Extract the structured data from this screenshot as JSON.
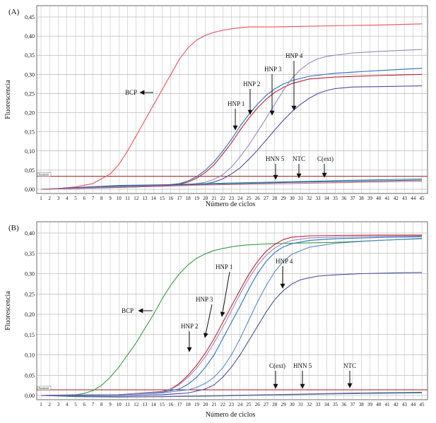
{
  "chart_data": [
    {
      "panel": "(A)",
      "type": "line",
      "xlabel": "Número de ciclos",
      "ylabel": "Fluorescencia",
      "xlim": [
        1,
        45
      ],
      "ylim": [
        0,
        0.45
      ],
      "x_ticks": [
        1,
        2,
        3,
        4,
        5,
        6,
        7,
        8,
        9,
        10,
        11,
        12,
        13,
        14,
        15,
        16,
        17,
        18,
        19,
        20,
        21,
        22,
        23,
        24,
        25,
        26,
        27,
        28,
        29,
        30,
        31,
        32,
        33,
        34,
        35,
        36,
        37,
        38,
        39,
        40,
        41,
        42,
        43,
        44,
        45
      ],
      "y_ticks": [
        "0,00",
        "0,05",
        "0,10",
        "0,15",
        "0,20",
        "0,25",
        "0,30",
        "0,35",
        "0,40",
        "0,45"
      ],
      "grid": true,
      "threshold": {
        "label": "Threshold",
        "value": 0.034,
        "color": "#a01818"
      },
      "series": [
        {
          "name": "BCP",
          "color": "#e8505a",
          "x": [
            1,
            3,
            5,
            7,
            9,
            10,
            11,
            12,
            13,
            14,
            15,
            16,
            17,
            18,
            19,
            20,
            21,
            22,
            23,
            24,
            25,
            26,
            28,
            30,
            35,
            40,
            45
          ],
          "values": [
            0.0,
            0.002,
            0.006,
            0.015,
            0.04,
            0.065,
            0.1,
            0.14,
            0.18,
            0.22,
            0.26,
            0.3,
            0.34,
            0.37,
            0.39,
            0.402,
            0.41,
            0.415,
            0.419,
            0.422,
            0.424,
            0.424,
            0.424,
            0.425,
            0.427,
            0.429,
            0.432
          ]
        },
        {
          "name": "HNP 1",
          "color": "#2a6fbf",
          "x": [
            1,
            5,
            10,
            15,
            17,
            18,
            19,
            20,
            21,
            22,
            23,
            24,
            25,
            26,
            27,
            28,
            29,
            30,
            32,
            35,
            40,
            45
          ],
          "values": [
            0.0,
            0.003,
            0.006,
            0.01,
            0.015,
            0.022,
            0.033,
            0.05,
            0.072,
            0.1,
            0.13,
            0.165,
            0.195,
            0.222,
            0.245,
            0.262,
            0.275,
            0.284,
            0.295,
            0.303,
            0.31,
            0.316
          ]
        },
        {
          "name": "HNP 2",
          "color": "#c02030",
          "x": [
            1,
            5,
            10,
            15,
            17,
            18,
            19,
            20,
            21,
            22,
            23,
            24,
            25,
            26,
            27,
            28,
            29,
            30,
            32,
            35,
            40,
            45
          ],
          "values": [
            0.0,
            0.003,
            0.006,
            0.009,
            0.013,
            0.019,
            0.029,
            0.044,
            0.064,
            0.092,
            0.121,
            0.155,
            0.185,
            0.212,
            0.235,
            0.253,
            0.266,
            0.276,
            0.288,
            0.293,
            0.297,
            0.3
          ]
        },
        {
          "name": "HNP 3",
          "color": "#9a86c0",
          "x": [
            1,
            5,
            10,
            15,
            18,
            20,
            21,
            22,
            23,
            24,
            25,
            26,
            27,
            28,
            29,
            30,
            31,
            32,
            33,
            34,
            35,
            37,
            40,
            45
          ],
          "values": [
            0.0,
            0.002,
            0.005,
            0.008,
            0.012,
            0.018,
            0.026,
            0.038,
            0.058,
            0.085,
            0.115,
            0.15,
            0.185,
            0.222,
            0.258,
            0.29,
            0.313,
            0.33,
            0.341,
            0.347,
            0.35,
            0.356,
            0.36,
            0.365
          ]
        },
        {
          "name": "HNP 4",
          "color": "#4b4fa0",
          "x": [
            1,
            5,
            10,
            15,
            18,
            20,
            21,
            22,
            23,
            24,
            25,
            26,
            27,
            28,
            29,
            30,
            31,
            32,
            33,
            34,
            35,
            37,
            40,
            45
          ],
          "values": [
            0.0,
            0.002,
            0.005,
            0.008,
            0.01,
            0.014,
            0.019,
            0.027,
            0.04,
            0.056,
            0.078,
            0.102,
            0.128,
            0.155,
            0.18,
            0.203,
            0.222,
            0.238,
            0.25,
            0.258,
            0.263,
            0.267,
            0.268,
            0.27
          ]
        },
        {
          "name": "HNN 5",
          "color": "#2e9a8a",
          "x": [
            1,
            10,
            20,
            30,
            40,
            45
          ],
          "values": [
            0.0,
            0.008,
            0.015,
            0.02,
            0.025,
            0.027
          ]
        },
        {
          "name": "NTC",
          "color": "#3a55a8",
          "x": [
            1,
            10,
            20,
            30,
            40,
            45
          ],
          "values": [
            0.0,
            0.01,
            0.013,
            0.018,
            0.022,
            0.024
          ]
        },
        {
          "name": "C(ext)",
          "color": "#d07080",
          "x": [
            1,
            10,
            20,
            30,
            40,
            45
          ],
          "values": [
            0.0,
            0.006,
            0.011,
            0.015,
            0.019,
            0.021
          ]
        }
      ],
      "annotations": [
        "BCP",
        "HNP 1",
        "HNP 2",
        "HNP 3",
        "HNP 4",
        "HNN 5",
        "NTC",
        "C(ext)"
      ]
    },
    {
      "panel": "(B)",
      "type": "line",
      "xlabel": "Número de ciclos",
      "ylabel": "Fluorescencia",
      "xlim": [
        1,
        45
      ],
      "ylim": [
        0,
        0.4
      ],
      "x_ticks": [
        1,
        2,
        3,
        4,
        5,
        6,
        7,
        8,
        9,
        10,
        11,
        12,
        13,
        14,
        15,
        16,
        17,
        18,
        19,
        20,
        21,
        22,
        23,
        24,
        25,
        26,
        27,
        28,
        29,
        30,
        31,
        32,
        33,
        34,
        35,
        36,
        37,
        38,
        39,
        40,
        41,
        42,
        43,
        44,
        45
      ],
      "y_ticks": [
        "0,00",
        "0,05",
        "0,10",
        "0,15",
        "0,20",
        "0,25",
        "0,30",
        "0,35",
        "0,40"
      ],
      "grid": true,
      "threshold": {
        "label": "Threshold",
        "value": 0.014,
        "color": "#a01818"
      },
      "series": [
        {
          "name": "BCP",
          "color": "#3a9a48",
          "x": [
            1,
            5,
            6,
            7,
            8,
            9,
            10,
            11,
            12,
            13,
            14,
            15,
            16,
            17,
            18,
            19,
            20,
            21,
            22,
            23,
            24,
            25,
            26,
            27,
            28,
            30,
            35,
            40,
            45
          ],
          "values": [
            0.0,
            0.002,
            0.005,
            0.012,
            0.025,
            0.045,
            0.07,
            0.1,
            0.13,
            0.165,
            0.2,
            0.238,
            0.272,
            0.3,
            0.322,
            0.338,
            0.349,
            0.357,
            0.362,
            0.366,
            0.369,
            0.371,
            0.372,
            0.373,
            0.374,
            0.375,
            0.377,
            0.382,
            0.386
          ]
        },
        {
          "name": "HNP 1",
          "color": "#2a6fbf",
          "x": [
            1,
            10,
            15,
            17,
            18,
            19,
            20,
            21,
            22,
            23,
            24,
            25,
            26,
            27,
            28,
            29,
            30,
            32,
            35,
            40,
            45
          ],
          "values": [
            0.0,
            0.002,
            0.008,
            0.016,
            0.028,
            0.045,
            0.07,
            0.1,
            0.14,
            0.18,
            0.22,
            0.262,
            0.3,
            0.33,
            0.352,
            0.366,
            0.374,
            0.382,
            0.386,
            0.389,
            0.391
          ]
        },
        {
          "name": "HNP 2",
          "color": "#c02030",
          "x": [
            1,
            10,
            15,
            16,
            17,
            18,
            19,
            20,
            21,
            22,
            23,
            24,
            25,
            26,
            27,
            28,
            29,
            30,
            32,
            35,
            40,
            45
          ],
          "values": [
            0.0,
            0.002,
            0.01,
            0.016,
            0.03,
            0.05,
            0.075,
            0.105,
            0.14,
            0.18,
            0.22,
            0.26,
            0.298,
            0.33,
            0.355,
            0.372,
            0.384,
            0.39,
            0.393,
            0.394,
            0.395,
            0.395
          ]
        },
        {
          "name": "HNP 3",
          "color": "#9a86c0",
          "x": [
            1,
            10,
            15,
            16,
            17,
            18,
            19,
            20,
            21,
            22,
            23,
            24,
            25,
            26,
            27,
            28,
            29,
            30,
            32,
            35,
            40,
            45
          ],
          "values": [
            0.0,
            0.002,
            0.009,
            0.015,
            0.027,
            0.045,
            0.068,
            0.096,
            0.13,
            0.168,
            0.208,
            0.25,
            0.288,
            0.32,
            0.345,
            0.363,
            0.375,
            0.382,
            0.388,
            0.39,
            0.392,
            0.393
          ]
        },
        {
          "name": "C(ext)",
          "color": "#5a88c8",
          "x": [
            1,
            10,
            15,
            18,
            19,
            20,
            21,
            22,
            23,
            24,
            25,
            26,
            27,
            28,
            29,
            30,
            32,
            35,
            40,
            45
          ],
          "values": [
            0.0,
            0.002,
            0.006,
            0.014,
            0.02,
            0.03,
            0.045,
            0.068,
            0.1,
            0.14,
            0.185,
            0.23,
            0.27,
            0.305,
            0.33,
            0.348,
            0.365,
            0.375,
            0.382,
            0.387
          ]
        },
        {
          "name": "HNP 4",
          "color": "#4b4fa0",
          "x": [
            1,
            10,
            15,
            18,
            20,
            21,
            22,
            23,
            24,
            25,
            26,
            27,
            28,
            29,
            30,
            31,
            32,
            33,
            35,
            38,
            42,
            45
          ],
          "values": [
            0.0,
            0.0,
            0.002,
            0.006,
            0.016,
            0.026,
            0.045,
            0.07,
            0.1,
            0.135,
            0.17,
            0.205,
            0.236,
            0.258,
            0.275,
            0.285,
            0.29,
            0.294,
            0.297,
            0.3,
            0.302,
            0.303
          ]
        },
        {
          "name": "HNN 5",
          "color": "#2e9a8a",
          "x": [
            1,
            5,
            10,
            15,
            20,
            25,
            30,
            35,
            40,
            45
          ],
          "values": [
            0.0,
            -0.003,
            -0.004,
            -0.003,
            -0.002,
            0.0,
            0.002,
            0.004,
            0.005,
            0.006
          ]
        },
        {
          "name": "NTC",
          "color": "#7a5aa8",
          "x": [
            1,
            5,
            10,
            15,
            20,
            25,
            30,
            35,
            40,
            45
          ],
          "values": [
            0.0,
            -0.002,
            -0.003,
            -0.003,
            -0.001,
            0.001,
            0.003,
            0.005,
            0.007,
            0.008
          ]
        }
      ],
      "annotations": [
        "BCP",
        "HNP 1",
        "HNP 2",
        "HNP 3",
        "HNP 4",
        "C(ext)",
        "HNN 5",
        "NTC"
      ]
    }
  ]
}
